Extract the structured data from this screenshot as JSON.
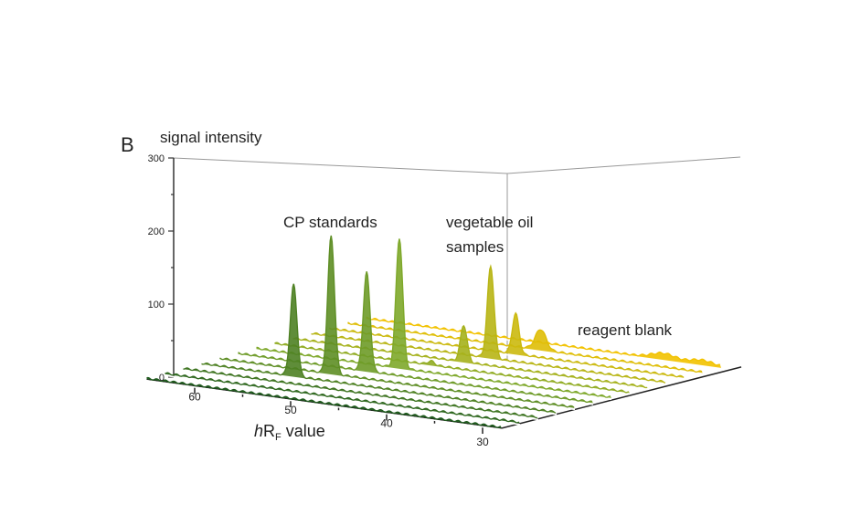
{
  "panel_label": "B",
  "chart_data": {
    "type": "waterfall-3d",
    "ylabel": "signal intensity",
    "xlabel": {
      "italic": "h",
      "main": "R",
      "sub": "F",
      "rest": " value"
    },
    "ylim": [
      0,
      300
    ],
    "yticks": [
      0,
      100,
      200,
      300
    ],
    "xlim": [
      65,
      28
    ],
    "xticks": [
      60,
      50,
      40,
      30
    ],
    "tracks": 13,
    "annotations": {
      "cp": "CP standards",
      "oil1": "vegetable oil",
      "oil2": "samples",
      "blank": "reagent blank"
    },
    "colors": {
      "front": "#1e5a1c",
      "middle": "#7ea82a",
      "back": "#f2c200"
    },
    "peaks": [
      {
        "track": 3,
        "hRF": 55.4,
        "intensity": 125,
        "group": "CP standards"
      },
      {
        "track": 4,
        "hRF": 53.4,
        "intensity": 188,
        "group": "CP standards"
      },
      {
        "track": 5,
        "hRF": 51.6,
        "intensity": 135,
        "group": "CP standards"
      },
      {
        "track": 6,
        "hRF": 50.1,
        "intensity": 178,
        "group": "CP standards"
      },
      {
        "track": 7,
        "hRF": 48.7,
        "intensity": 5,
        "group": "vegetable oil samples"
      },
      {
        "track": 8,
        "hRF": 47.2,
        "intensity": 50,
        "group": "vegetable oil samples"
      },
      {
        "track": 9,
        "hRF": 46.3,
        "intensity": 125,
        "group": "vegetable oil samples"
      },
      {
        "track": 10,
        "hRF": 45.6,
        "intensity": 55,
        "group": "vegetable oil samples"
      },
      {
        "track": 11,
        "hRF": 44.9,
        "intensity": 28,
        "group": "vegetable oil samples"
      },
      {
        "track": 12,
        "hRF": 34,
        "intensity": 8,
        "group": "reagent blank"
      },
      {
        "track": 12,
        "hRF": 30,
        "intensity": 6,
        "group": "reagent blank"
      }
    ]
  }
}
